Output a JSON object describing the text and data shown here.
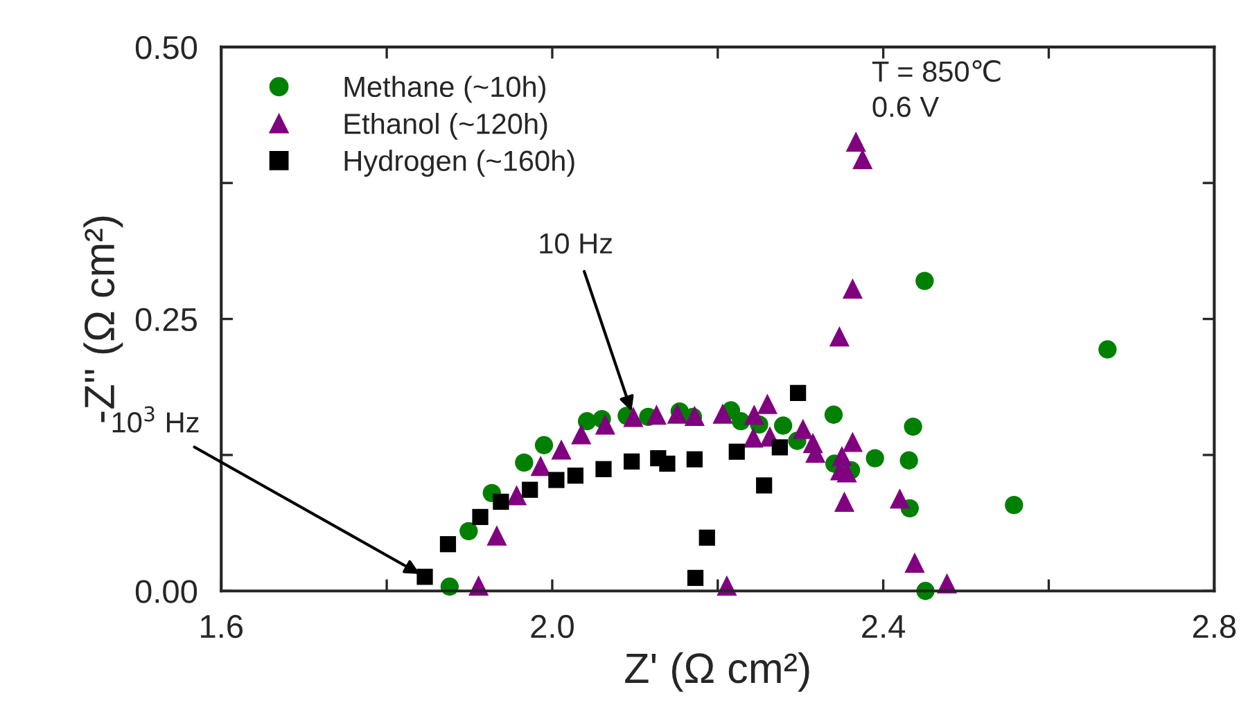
{
  "chart_data": {
    "type": "scatter",
    "xlabel": "Z' (Ω cm²)",
    "ylabel": "-Z'' (Ω cm²)",
    "xlim": [
      1.6,
      2.8
    ],
    "ylim": [
      0,
      0.5
    ],
    "xticks": [
      {
        "value": 1.6,
        "label": "1.6"
      },
      {
        "value": 1.8,
        "label": null
      },
      {
        "value": 2.0,
        "label": "2.0"
      },
      {
        "value": 2.2,
        "label": null
      },
      {
        "value": 2.4,
        "label": "2.4"
      },
      {
        "value": 2.6,
        "label": null
      },
      {
        "value": 2.8,
        "label": "2.8"
      }
    ],
    "yticks": [
      {
        "value": 0,
        "label": "0.00"
      },
      {
        "value": 0.125,
        "label": null
      },
      {
        "value": 0.25,
        "label": "0.25"
      },
      {
        "value": 0.375,
        "label": null
      },
      {
        "value": 0.5,
        "label": "0.50"
      }
    ],
    "grid": false,
    "legend": "top left",
    "series": [
      {
        "name": "Methane (~10h)",
        "color": "#008000",
        "marker": "circle",
        "x": [
          1.876,
          1.899,
          1.927,
          1.966,
          1.99,
          2.042,
          2.06,
          2.09,
          2.116,
          2.154,
          2.17,
          2.216,
          2.228,
          2.25,
          2.279,
          2.296,
          2.34,
          2.341,
          2.361,
          2.39,
          2.431,
          2.436,
          2.432,
          2.451,
          2.558,
          2.671,
          2.45
        ],
        "values": [
          0.004,
          0.055,
          0.09,
          0.118,
          0.134,
          0.156,
          0.158,
          0.161,
          0.16,
          0.165,
          0.16,
          0.166,
          0.156,
          0.153,
          0.152,
          0.138,
          0.162,
          0.117,
          0.111,
          0.122,
          0.12,
          0.151,
          0.076,
          0.0,
          0.079,
          0.222,
          0.285
        ]
      },
      {
        "name": "Ethanol (~120h)",
        "color": "#800080",
        "marker": "triangle",
        "x": [
          1.911,
          1.933,
          1.957,
          1.986,
          2.011,
          2.035,
          2.064,
          2.098,
          2.126,
          2.151,
          2.172,
          2.206,
          2.211,
          2.244,
          2.26,
          2.243,
          2.263,
          2.303,
          2.315,
          2.318,
          2.35,
          2.363,
          2.348,
          2.356,
          2.353,
          2.42,
          2.438,
          2.477,
          2.347,
          2.363,
          2.367,
          2.375
        ],
        "values": [
          0.005,
          0.051,
          0.088,
          0.115,
          0.13,
          0.144,
          0.153,
          0.16,
          0.162,
          0.163,
          0.161,
          0.163,
          0.005,
          0.162,
          0.172,
          0.141,
          0.142,
          0.149,
          0.136,
          0.127,
          0.124,
          0.137,
          0.111,
          0.109,
          0.082,
          0.085,
          0.026,
          0.007,
          0.234,
          0.278,
          0.413,
          0.397
        ]
      },
      {
        "name": "Hydrogen (~160h)",
        "color": "#000000",
        "marker": "square",
        "x": [
          1.846,
          1.874,
          1.913,
          1.938,
          1.973,
          2.005,
          2.028,
          2.062,
          2.096,
          2.128,
          2.139,
          2.172,
          2.187,
          2.173,
          2.223,
          2.256,
          2.275,
          2.297
        ],
        "values": [
          0.013,
          0.043,
          0.068,
          0.082,
          0.093,
          0.102,
          0.106,
          0.112,
          0.119,
          0.122,
          0.117,
          0.121,
          0.049,
          0.012,
          0.128,
          0.097,
          0.132,
          0.182
        ]
      }
    ],
    "annotations": [
      {
        "text": "10 Hz",
        "x": 2.098,
        "y": 0.16
      },
      {
        "text": "10$^{3}$ Hz",
        "x": 1.846,
        "y": 0.013
      },
      "T = 850℃\n0.6 V"
    ]
  }
}
